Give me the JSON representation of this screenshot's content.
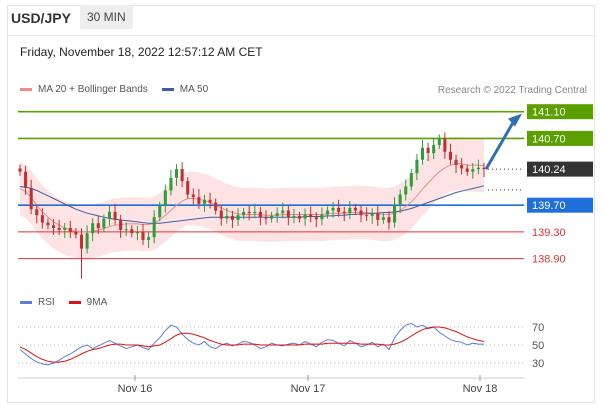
{
  "header": {
    "symbol": "USD/JPY",
    "timeframe": "30 MIN"
  },
  "datetime": "Friday, November 18, 2022 12:57:12 AM CET",
  "legend_main": [
    {
      "label": "MA 20 + Bollinger Bands",
      "color": "#f08a8a"
    },
    {
      "label": "MA 50",
      "color": "#3a5fa8"
    }
  ],
  "copyright": "Research © 2022 Trading Central",
  "legend_rsi": [
    {
      "label": "RSI",
      "color": "#5b7fd6"
    },
    {
      "label": "9MA",
      "color": "#dd1111"
    }
  ],
  "colors": {
    "resistance": "#5aa000",
    "pivot": "#1e6fd9",
    "support": "#e53333",
    "current": "#333333",
    "bb_fill": "#fde0e0",
    "ma20": "#f08a8a",
    "ma50": "#3a5fa8",
    "up_candle": "#2e9e3c",
    "down_candle": "#c03030",
    "arrow": "#2f6fb5"
  },
  "chart_data": [
    {
      "type": "line",
      "title": "USD/JPY 30 MIN",
      "x_tick_labels": [
        "Nov 16",
        "Nov 17",
        "Nov 18"
      ],
      "ylim": [
        138.55,
        141.2
      ],
      "levels": [
        {
          "name": "resistance-2",
          "value": 141.1,
          "label": "141.10",
          "kind": "resistance"
        },
        {
          "name": "resistance-1",
          "value": 140.7,
          "label": "140.70",
          "kind": "resistance"
        },
        {
          "name": "current",
          "value": 140.24,
          "label": "140.24",
          "kind": "current"
        },
        {
          "name": "pivot",
          "value": 139.7,
          "label": "139.70",
          "kind": "pivot"
        },
        {
          "name": "support-1",
          "value": 139.3,
          "label": "139.30",
          "kind": "support"
        },
        {
          "name": "support-2",
          "value": 138.9,
          "label": "138.90",
          "kind": "support"
        }
      ],
      "close_series": [
        140.2,
        139.96,
        139.64,
        139.55,
        139.44,
        139.4,
        139.36,
        139.33,
        139.36,
        139.3,
        139.26,
        139.05,
        139.28,
        139.43,
        139.36,
        139.5,
        139.6,
        139.48,
        139.33,
        139.34,
        139.28,
        139.3,
        139.18,
        139.22,
        139.52,
        139.69,
        139.92,
        140.11,
        140.24,
        140.06,
        139.86,
        139.82,
        139.72,
        139.78,
        139.74,
        139.62,
        139.5,
        139.54,
        139.48,
        139.55,
        139.6,
        139.58,
        139.6,
        139.52,
        139.5,
        139.54,
        139.58,
        139.62,
        139.52,
        139.54,
        139.5,
        139.56,
        139.52,
        139.49,
        139.56,
        139.62,
        139.66,
        139.6,
        139.58,
        139.66,
        139.62,
        139.55,
        139.54,
        139.58,
        139.48,
        139.52,
        139.44,
        139.7,
        139.86,
        139.98,
        140.18,
        140.38,
        140.56,
        140.48,
        140.6,
        140.7,
        140.5,
        140.38,
        140.3,
        140.25,
        140.2,
        140.24,
        140.26,
        140.24
      ],
      "ma20_series": [
        139.95,
        139.9,
        139.82,
        139.7,
        139.6,
        139.52,
        139.45,
        139.4,
        139.36,
        139.33,
        139.31,
        139.3,
        139.3,
        139.31,
        139.33,
        139.35,
        139.38,
        139.4,
        139.41,
        139.42,
        139.42,
        139.42,
        139.41,
        139.41,
        139.43,
        139.48,
        139.55,
        139.62,
        139.7,
        139.76,
        139.8,
        139.8,
        139.79,
        139.77,
        139.74,
        139.7,
        139.66,
        139.62,
        139.59,
        139.57,
        139.56,
        139.56,
        139.56,
        139.56,
        139.55,
        139.55,
        139.55,
        139.56,
        139.56,
        139.56,
        139.56,
        139.56,
        139.56,
        139.56,
        139.56,
        139.57,
        139.58,
        139.58,
        139.58,
        139.59,
        139.59,
        139.59,
        139.59,
        139.58,
        139.57,
        139.56,
        139.56,
        139.58,
        139.62,
        139.68,
        139.75,
        139.84,
        139.94,
        140.03,
        140.12,
        140.2,
        140.26,
        140.3,
        140.32,
        140.32,
        140.3,
        140.3,
        140.3,
        140.29
      ],
      "ma50_series": [
        139.98,
        139.97,
        139.95,
        139.92,
        139.88,
        139.84,
        139.8,
        139.76,
        139.72,
        139.68,
        139.64,
        139.61,
        139.58,
        139.56,
        139.54,
        139.52,
        139.5,
        139.49,
        139.48,
        139.47,
        139.46,
        139.45,
        139.44,
        139.43,
        139.43,
        139.43,
        139.44,
        139.45,
        139.46,
        139.47,
        139.48,
        139.49,
        139.5,
        139.51,
        139.52,
        139.52,
        139.52,
        139.52,
        139.52,
        139.52,
        139.52,
        139.52,
        139.52,
        139.52,
        139.52,
        139.52,
        139.52,
        139.52,
        139.52,
        139.52,
        139.52,
        139.53,
        139.53,
        139.53,
        139.53,
        139.54,
        139.54,
        139.55,
        139.55,
        139.56,
        139.56,
        139.57,
        139.57,
        139.58,
        139.58,
        139.59,
        139.59,
        139.6,
        139.61,
        139.63,
        139.65,
        139.68,
        139.71,
        139.74,
        139.77,
        139.8,
        139.83,
        139.86,
        139.89,
        139.91,
        139.93,
        139.95,
        139.97,
        139.99
      ],
      "bb_band": {
        "upper_offset": 0.4,
        "lower_offset": 0.4
      },
      "forecast_arrow": {
        "from": 140.24,
        "to": 141.1
      }
    },
    {
      "type": "line",
      "title": "RSI",
      "ylim": [
        20,
        80
      ],
      "y_ticks": [
        70,
        50,
        30
      ],
      "rsi_series": [
        45,
        40,
        35,
        31,
        29,
        28,
        30,
        33,
        37,
        40,
        44,
        48,
        50,
        46,
        49,
        52,
        55,
        52,
        49,
        46,
        48,
        50,
        47,
        45,
        52,
        58,
        66,
        72,
        70,
        62,
        56,
        52,
        50,
        54,
        48,
        46,
        50,
        52,
        49,
        51,
        54,
        53,
        50,
        46,
        48,
        52,
        50,
        49,
        51,
        52,
        50,
        54,
        51,
        48,
        53,
        56,
        55,
        52,
        49,
        55,
        52,
        48,
        50,
        53,
        48,
        51,
        45,
        58,
        66,
        72,
        74,
        70,
        72,
        68,
        70,
        64,
        60,
        56,
        54,
        53,
        50,
        52,
        51,
        51
      ],
      "ma9_series": [
        48,
        45,
        41,
        37,
        34,
        32,
        31,
        31,
        32,
        34,
        37,
        40,
        43,
        45,
        46,
        48,
        50,
        51,
        51,
        50,
        50,
        50,
        49,
        48,
        49,
        50,
        53,
        57,
        61,
        63,
        63,
        62,
        60,
        58,
        55,
        53,
        51,
        50,
        50,
        50,
        51,
        51,
        51,
        50,
        50,
        50,
        50,
        50,
        50,
        50,
        50,
        51,
        51,
        51,
        51,
        52,
        52,
        52,
        52,
        52,
        52,
        51,
        51,
        51,
        51,
        50,
        50,
        51,
        53,
        56,
        60,
        64,
        67,
        69,
        70,
        70,
        69,
        67,
        65,
        62,
        59,
        57,
        55,
        54
      ]
    }
  ]
}
